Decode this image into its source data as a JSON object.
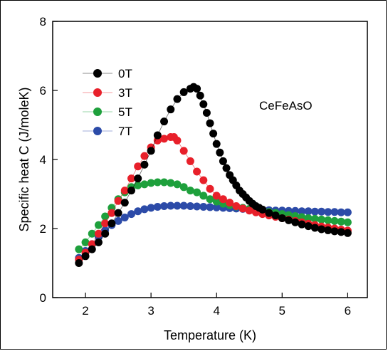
{
  "chart_data": {
    "type": "scatter",
    "title": "",
    "xlabel": "Temperature (K)",
    "ylabel": "Specific heat C (J/moleK)",
    "xlim": [
      1.5,
      6.3
    ],
    "ylim": [
      0,
      8
    ],
    "xticks": [
      2,
      3,
      4,
      5,
      6
    ],
    "yticks": [
      0,
      2,
      4,
      6,
      8
    ],
    "grid": false,
    "legend_position": "top-left",
    "annotation": "CeFeAsO",
    "series": [
      {
        "name": "0T",
        "color": "#000000",
        "x": [
          1.9,
          2.0,
          2.1,
          2.2,
          2.3,
          2.4,
          2.5,
          2.6,
          2.7,
          2.8,
          2.9,
          3.0,
          3.1,
          3.2,
          3.3,
          3.4,
          3.5,
          3.6,
          3.65,
          3.7,
          3.75,
          3.8,
          3.85,
          3.9,
          3.95,
          4.0,
          4.05,
          4.1,
          4.15,
          4.2,
          4.25,
          4.3,
          4.35,
          4.4,
          4.45,
          4.5,
          4.55,
          4.6,
          4.65,
          4.7,
          4.8,
          4.9,
          5.0,
          5.1,
          5.2,
          5.3,
          5.4,
          5.5,
          5.6,
          5.7,
          5.8,
          5.9,
          6.0
        ],
        "y": [
          1.0,
          1.2,
          1.4,
          1.6,
          1.85,
          2.15,
          2.45,
          2.75,
          3.1,
          3.45,
          3.85,
          4.25,
          4.7,
          5.1,
          5.45,
          5.75,
          5.95,
          6.05,
          6.1,
          6.05,
          5.85,
          5.6,
          5.35,
          5.05,
          4.75,
          4.45,
          4.2,
          3.95,
          3.75,
          3.55,
          3.4,
          3.25,
          3.1,
          3.0,
          2.9,
          2.8,
          2.72,
          2.65,
          2.6,
          2.55,
          2.45,
          2.38,
          2.3,
          2.24,
          2.18,
          2.12,
          2.07,
          2.02,
          1.98,
          1.95,
          1.92,
          1.9,
          1.87
        ]
      },
      {
        "name": "3T",
        "color": "#e8202a",
        "x": [
          1.9,
          2.0,
          2.1,
          2.2,
          2.3,
          2.4,
          2.5,
          2.6,
          2.7,
          2.8,
          2.9,
          3.0,
          3.1,
          3.2,
          3.3,
          3.35,
          3.4,
          3.5,
          3.6,
          3.7,
          3.8,
          3.9,
          4.0,
          4.1,
          4.2,
          4.3,
          4.4,
          4.5,
          4.6,
          4.7,
          4.8,
          4.9,
          5.0,
          5.1,
          5.2,
          5.3,
          5.4,
          5.5,
          5.6,
          5.7,
          5.8,
          5.9,
          6.0
        ],
        "y": [
          1.1,
          1.3,
          1.55,
          1.85,
          2.15,
          2.45,
          2.8,
          3.1,
          3.45,
          3.8,
          4.1,
          4.35,
          4.55,
          4.6,
          4.65,
          4.65,
          4.55,
          4.25,
          3.95,
          3.65,
          3.4,
          3.15,
          2.95,
          2.85,
          2.75,
          2.65,
          2.58,
          2.52,
          2.47,
          2.42,
          2.38,
          2.34,
          2.3,
          2.26,
          2.22,
          2.18,
          2.14,
          2.1,
          2.06,
          2.03,
          2.0,
          1.97,
          1.94
        ]
      },
      {
        "name": "5T",
        "color": "#1ea03c",
        "x": [
          1.9,
          2.0,
          2.1,
          2.2,
          2.3,
          2.4,
          2.5,
          2.6,
          2.7,
          2.8,
          2.9,
          3.0,
          3.1,
          3.2,
          3.3,
          3.4,
          3.5,
          3.6,
          3.7,
          3.8,
          3.9,
          4.0,
          4.1,
          4.2,
          4.3,
          4.4,
          4.5,
          4.6,
          4.7,
          4.8,
          4.9,
          5.0,
          5.1,
          5.2,
          5.3,
          5.4,
          5.5,
          5.6,
          5.7,
          5.8,
          5.9,
          6.0
        ],
        "y": [
          1.4,
          1.6,
          1.85,
          2.1,
          2.35,
          2.6,
          2.85,
          3.05,
          3.2,
          3.25,
          3.28,
          3.32,
          3.34,
          3.34,
          3.32,
          3.28,
          3.2,
          3.1,
          3.05,
          2.95,
          2.85,
          2.78,
          2.72,
          2.68,
          2.64,
          2.6,
          2.57,
          2.54,
          2.51,
          2.48,
          2.45,
          2.42,
          2.39,
          2.36,
          2.33,
          2.3,
          2.28,
          2.26,
          2.24,
          2.22,
          2.2,
          2.18
        ]
      },
      {
        "name": "7T",
        "color": "#2c4ba8",
        "x": [
          1.9,
          2.0,
          2.1,
          2.2,
          2.3,
          2.4,
          2.5,
          2.6,
          2.7,
          2.8,
          2.9,
          3.0,
          3.1,
          3.2,
          3.3,
          3.4,
          3.5,
          3.6,
          3.7,
          3.8,
          3.9,
          4.0,
          4.1,
          4.2,
          4.3,
          4.4,
          4.5,
          4.6,
          4.7,
          4.8,
          4.9,
          5.0,
          5.1,
          5.2,
          5.3,
          5.4,
          5.5,
          5.6,
          5.7,
          5.8,
          5.9,
          6.0
        ],
        "y": [
          1.15,
          1.35,
          1.55,
          1.75,
          1.95,
          2.1,
          2.22,
          2.32,
          2.42,
          2.5,
          2.56,
          2.6,
          2.63,
          2.65,
          2.66,
          2.66,
          2.66,
          2.65,
          2.64,
          2.63,
          2.62,
          2.61,
          2.6,
          2.59,
          2.58,
          2.57,
          2.56,
          2.55,
          2.54,
          2.53,
          2.52,
          2.52,
          2.51,
          2.51,
          2.5,
          2.5,
          2.49,
          2.49,
          2.48,
          2.48,
          2.47,
          2.47
        ]
      }
    ]
  }
}
